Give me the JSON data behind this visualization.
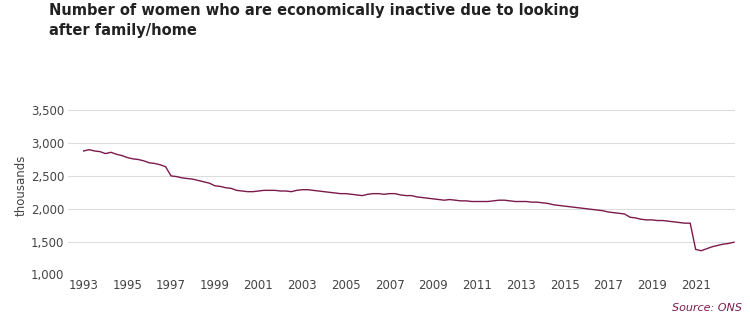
{
  "title_line1": "Number of women who are economically inactive due to looking",
  "title_line2": "after family/home",
  "ylabel": "thousands",
  "source": "Source: ONS",
  "line_color": "#7B1A4B",
  "background_color": "#ffffff",
  "ylim": [
    1000,
    3700
  ],
  "yticks": [
    1000,
    1500,
    2000,
    2500,
    3000,
    3500
  ],
  "ytick_labels": [
    "1,000",
    "1,500",
    "2,000",
    "2,500",
    "3,000",
    "3,500"
  ],
  "xtick_years": [
    1993,
    1995,
    1997,
    1999,
    2001,
    2003,
    2005,
    2007,
    2009,
    2011,
    2013,
    2015,
    2017,
    2019,
    2021
  ],
  "xlim": [
    1992.3,
    2022.8
  ],
  "data": [
    [
      1993.0,
      2880
    ],
    [
      1993.25,
      2900
    ],
    [
      1993.5,
      2880
    ],
    [
      1993.75,
      2870
    ],
    [
      1994.0,
      2840
    ],
    [
      1994.25,
      2860
    ],
    [
      1994.5,
      2830
    ],
    [
      1994.75,
      2810
    ],
    [
      1995.0,
      2780
    ],
    [
      1995.25,
      2760
    ],
    [
      1995.5,
      2750
    ],
    [
      1995.75,
      2730
    ],
    [
      1996.0,
      2700
    ],
    [
      1996.25,
      2690
    ],
    [
      1996.5,
      2670
    ],
    [
      1996.75,
      2640
    ],
    [
      1997.0,
      2500
    ],
    [
      1997.25,
      2490
    ],
    [
      1997.5,
      2470
    ],
    [
      1997.75,
      2460
    ],
    [
      1998.0,
      2450
    ],
    [
      1998.25,
      2430
    ],
    [
      1998.5,
      2410
    ],
    [
      1998.75,
      2390
    ],
    [
      1999.0,
      2350
    ],
    [
      1999.25,
      2340
    ],
    [
      1999.5,
      2320
    ],
    [
      1999.75,
      2310
    ],
    [
      2000.0,
      2280
    ],
    [
      2000.25,
      2270
    ],
    [
      2000.5,
      2260
    ],
    [
      2000.75,
      2260
    ],
    [
      2001.0,
      2270
    ],
    [
      2001.25,
      2280
    ],
    [
      2001.5,
      2280
    ],
    [
      2001.75,
      2280
    ],
    [
      2002.0,
      2270
    ],
    [
      2002.25,
      2270
    ],
    [
      2002.5,
      2260
    ],
    [
      2002.75,
      2280
    ],
    [
      2003.0,
      2290
    ],
    [
      2003.25,
      2290
    ],
    [
      2003.5,
      2280
    ],
    [
      2003.75,
      2270
    ],
    [
      2004.0,
      2260
    ],
    [
      2004.25,
      2250
    ],
    [
      2004.5,
      2240
    ],
    [
      2004.75,
      2230
    ],
    [
      2005.0,
      2230
    ],
    [
      2005.25,
      2220
    ],
    [
      2005.5,
      2210
    ],
    [
      2005.75,
      2200
    ],
    [
      2006.0,
      2220
    ],
    [
      2006.25,
      2230
    ],
    [
      2006.5,
      2230
    ],
    [
      2006.75,
      2220
    ],
    [
      2007.0,
      2230
    ],
    [
      2007.25,
      2230
    ],
    [
      2007.5,
      2210
    ],
    [
      2007.75,
      2200
    ],
    [
      2008.0,
      2200
    ],
    [
      2008.25,
      2180
    ],
    [
      2008.5,
      2170
    ],
    [
      2008.75,
      2160
    ],
    [
      2009.0,
      2150
    ],
    [
      2009.25,
      2140
    ],
    [
      2009.5,
      2130
    ],
    [
      2009.75,
      2140
    ],
    [
      2010.0,
      2130
    ],
    [
      2010.25,
      2120
    ],
    [
      2010.5,
      2120
    ],
    [
      2010.75,
      2110
    ],
    [
      2011.0,
      2110
    ],
    [
      2011.25,
      2110
    ],
    [
      2011.5,
      2110
    ],
    [
      2011.75,
      2120
    ],
    [
      2012.0,
      2130
    ],
    [
      2012.25,
      2130
    ],
    [
      2012.5,
      2120
    ],
    [
      2012.75,
      2110
    ],
    [
      2013.0,
      2110
    ],
    [
      2013.25,
      2110
    ],
    [
      2013.5,
      2100
    ],
    [
      2013.75,
      2100
    ],
    [
      2014.0,
      2090
    ],
    [
      2014.25,
      2080
    ],
    [
      2014.5,
      2060
    ],
    [
      2014.75,
      2050
    ],
    [
      2015.0,
      2040
    ],
    [
      2015.25,
      2030
    ],
    [
      2015.5,
      2020
    ],
    [
      2015.75,
      2010
    ],
    [
      2016.0,
      2000
    ],
    [
      2016.25,
      1990
    ],
    [
      2016.5,
      1980
    ],
    [
      2016.75,
      1970
    ],
    [
      2017.0,
      1950
    ],
    [
      2017.25,
      1940
    ],
    [
      2017.5,
      1930
    ],
    [
      2017.75,
      1920
    ],
    [
      2018.0,
      1870
    ],
    [
      2018.25,
      1860
    ],
    [
      2018.5,
      1840
    ],
    [
      2018.75,
      1830
    ],
    [
      2019.0,
      1830
    ],
    [
      2019.25,
      1820
    ],
    [
      2019.5,
      1820
    ],
    [
      2019.75,
      1810
    ],
    [
      2020.0,
      1800
    ],
    [
      2020.25,
      1790
    ],
    [
      2020.5,
      1780
    ],
    [
      2020.75,
      1780
    ],
    [
      2021.0,
      1380
    ],
    [
      2021.25,
      1360
    ],
    [
      2021.5,
      1390
    ],
    [
      2021.75,
      1420
    ],
    [
      2022.0,
      1440
    ],
    [
      2022.25,
      1460
    ],
    [
      2022.5,
      1470
    ],
    [
      2022.75,
      1490
    ]
  ]
}
